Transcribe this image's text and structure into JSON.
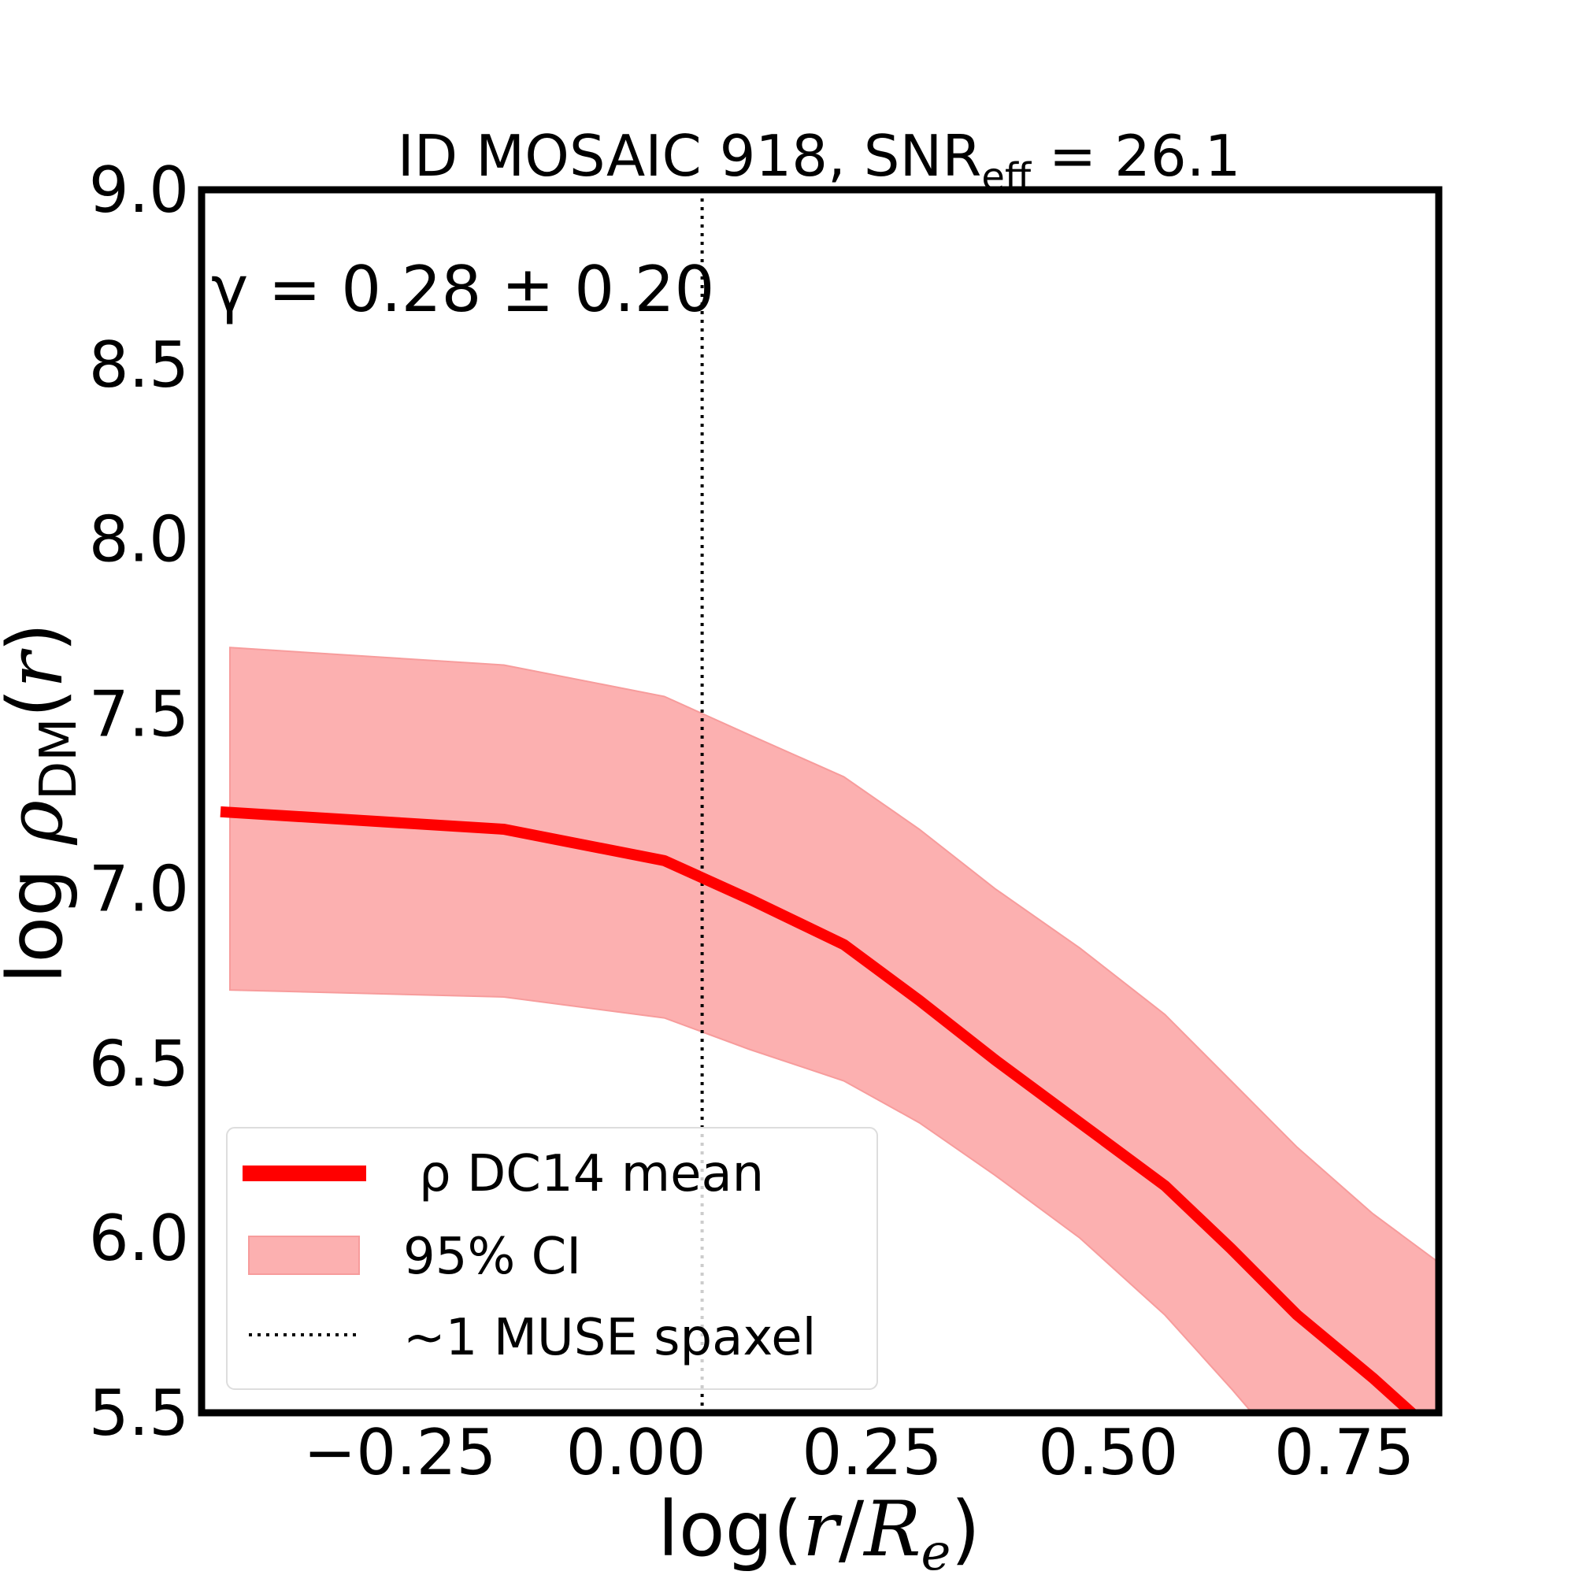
{
  "chart_data": {
    "type": "line",
    "title": "ID MOSAIC 918, SNR",
    "title_subscript": "eff",
    "title_suffix": " = 26.1",
    "annotation": "γ = 0.28 ± 0.20",
    "xlabel": "log(r/R_e)",
    "ylabel": "log ρ_DM(r)",
    "xlim": [
      -0.46,
      0.85
    ],
    "ylim": [
      5.5,
      9.0
    ],
    "x_ticks": [
      -0.25,
      0.0,
      0.25,
      0.5,
      0.75
    ],
    "x_tick_labels": [
      "−0.25",
      "0.00",
      "0.25",
      "0.50",
      "0.75"
    ],
    "y_ticks": [
      5.5,
      6.0,
      6.5,
      7.0,
      7.5,
      8.0,
      8.5,
      9.0
    ],
    "y_tick_labels": [
      "5.5",
      "6.0",
      "6.5",
      "7.0",
      "7.5",
      "8.0",
      "8.5",
      "9.0"
    ],
    "grid": false,
    "legend_position": "lower-left",
    "colors": {
      "mean_line": "#ff0000",
      "ci_fill": "#fcb0b0",
      "spaxel_line": "#000000"
    },
    "series": [
      {
        "name": "ρ DC14 mean",
        "x": [
          -0.44,
          -0.14,
          0.03,
          0.12,
          0.22,
          0.3,
          0.38,
          0.47,
          0.56,
          0.63,
          0.7,
          0.78,
          0.85
        ],
        "y": [
          7.22,
          7.17,
          7.08,
          6.97,
          6.84,
          6.68,
          6.51,
          6.33,
          6.15,
          5.97,
          5.78,
          5.6,
          5.43
        ]
      }
    ],
    "ci_band": {
      "name": "95% CI",
      "x": [
        -0.43,
        -0.14,
        0.03,
        0.12,
        0.22,
        0.3,
        0.38,
        0.47,
        0.56,
        0.63,
        0.7,
        0.78,
        0.85
      ],
      "upper": [
        7.69,
        7.64,
        7.55,
        7.44,
        7.32,
        7.17,
        7.0,
        6.83,
        6.64,
        6.45,
        6.26,
        6.07,
        5.93
      ],
      "lower": [
        6.71,
        6.69,
        6.63,
        6.54,
        6.45,
        6.33,
        6.18,
        6.0,
        5.78,
        5.57,
        5.35,
        5.15,
        5.0
      ]
    },
    "vline": {
      "name": "~1 MUSE spaxel",
      "x": 0.07
    }
  }
}
